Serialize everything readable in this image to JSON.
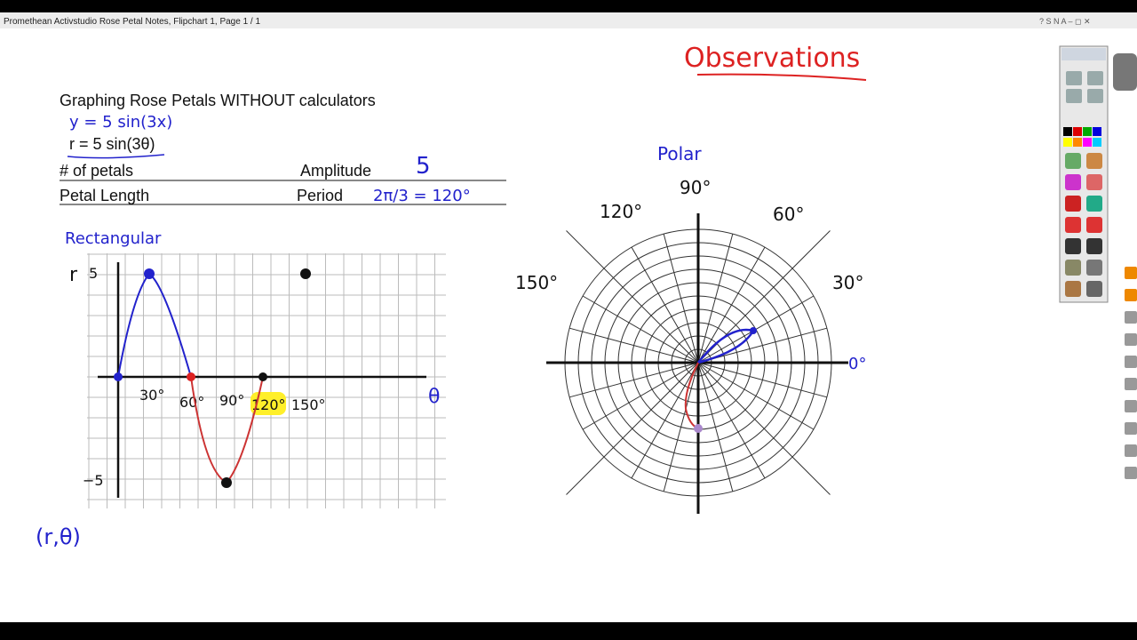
{
  "window": {
    "title": "Promethean Activstudio   Rose Petal Notes,  Flipchart 1,  Page 1 / 1"
  },
  "page": {
    "observations": "Observations",
    "heading": "Graphing Rose Petals WITHOUT calculators",
    "equation_rect": "y = 5 sin(3x)",
    "equation_polar": "r = 5 sin(3θ)",
    "table": {
      "rows": [
        [
          "# of petals",
          "Amplitude",
          "5"
        ],
        [
          "Petal Length",
          "Period",
          "2π/3 = 120°"
        ]
      ]
    },
    "rectangular": {
      "label": "Rectangular",
      "y_axis_label": "r",
      "y_ticks": [
        "5",
        "−5"
      ],
      "x_ticks": [
        "30°",
        "60°",
        "90°",
        "120°",
        "150°"
      ],
      "x_axis_label": "θ"
    },
    "point_notation": "(r,θ)",
    "polar": {
      "label": "Polar",
      "angles": [
        "0°",
        "30°",
        "60°",
        "90°",
        "120°",
        "150°"
      ]
    }
  }
}
